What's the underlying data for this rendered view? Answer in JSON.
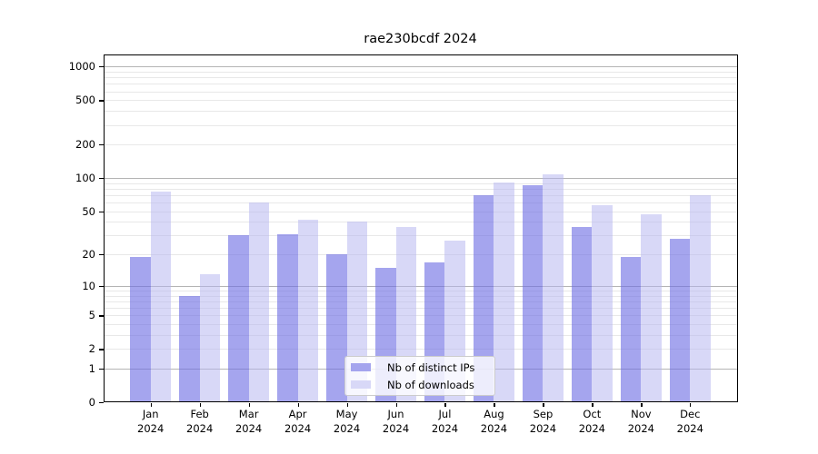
{
  "chart_data": {
    "type": "bar",
    "title": "rae230bcdf 2024",
    "categories": [
      "Jan 2024",
      "Feb 2024",
      "Mar 2024",
      "Apr 2024",
      "May 2024",
      "Jun 2024",
      "Jul 2024",
      "Aug 2024",
      "Sep 2024",
      "Oct 2024",
      "Nov 2024",
      "Dec 2024"
    ],
    "series": [
      {
        "name": "Nb of distinct IPs",
        "color_hex": "#a4a4ee",
        "bar_rgba": "rgba(110,110,228,0.62)",
        "values": [
          19,
          8,
          30,
          31,
          20,
          15,
          17,
          70,
          87,
          36,
          19,
          28
        ]
      },
      {
        "name": "Nb of downloads",
        "color_hex": "#d8d8f7",
        "bar_rgba": "rgba(180,180,240,0.52)",
        "values": [
          75,
          13,
          60,
          42,
          40,
          36,
          27,
          92,
          108,
          57,
          47,
          70
        ]
      }
    ],
    "xlabel": "",
    "ylabel": "",
    "yscale": "log1p",
    "ylim": [
      0,
      1280
    ],
    "yticks": [
      0,
      1,
      2,
      5,
      10,
      20,
      50,
      100,
      200,
      500,
      1000
    ],
    "y_major_gridlines": [
      1,
      10,
      100,
      1000
    ],
    "grid": "horizontal major+minor",
    "grid_major_color": "#b4b4b4",
    "grid_minor_color": "#e8e8e8",
    "legend_position": "lower center",
    "legend_border_color": "#cccccc",
    "legend_bg": "rgba(255,255,255,0.8)"
  }
}
